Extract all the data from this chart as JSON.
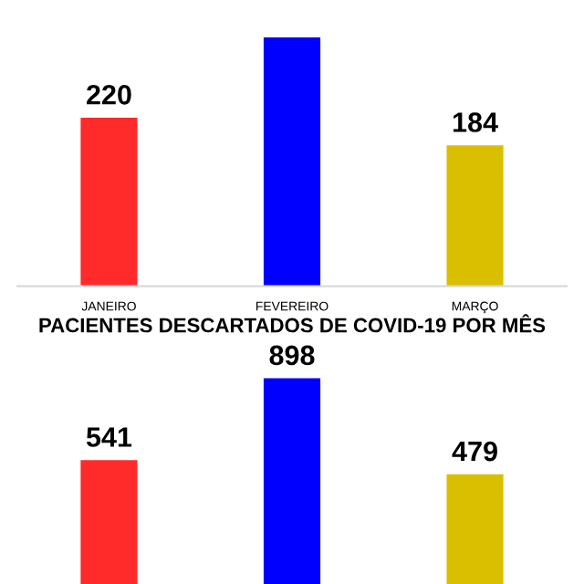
{
  "chart_data": [
    {
      "type": "bar",
      "categories": [
        "JANEIRO",
        "FEVEREIRO",
        "MARÇO"
      ],
      "colors": [
        "#ff2a2a",
        "#0000ff",
        "#d9bf00"
      ],
      "values": [
        220,
        325,
        184
      ],
      "value_labels": [
        "220",
        null,
        "184"
      ],
      "tick_labels": "x",
      "grid": false,
      "legend": false
    },
    {
      "type": "bar",
      "title": "PACIENTES DESCARTADOS DE COVID-19 POR MÊS",
      "categories": [
        null,
        null,
        null
      ],
      "colors": [
        "#ff2a2a",
        "#0000ff",
        "#d9bf00"
      ],
      "values": [
        541,
        898,
        479
      ],
      "data_labels": true,
      "tick_labels": false,
      "grid": false,
      "legend": false
    }
  ]
}
